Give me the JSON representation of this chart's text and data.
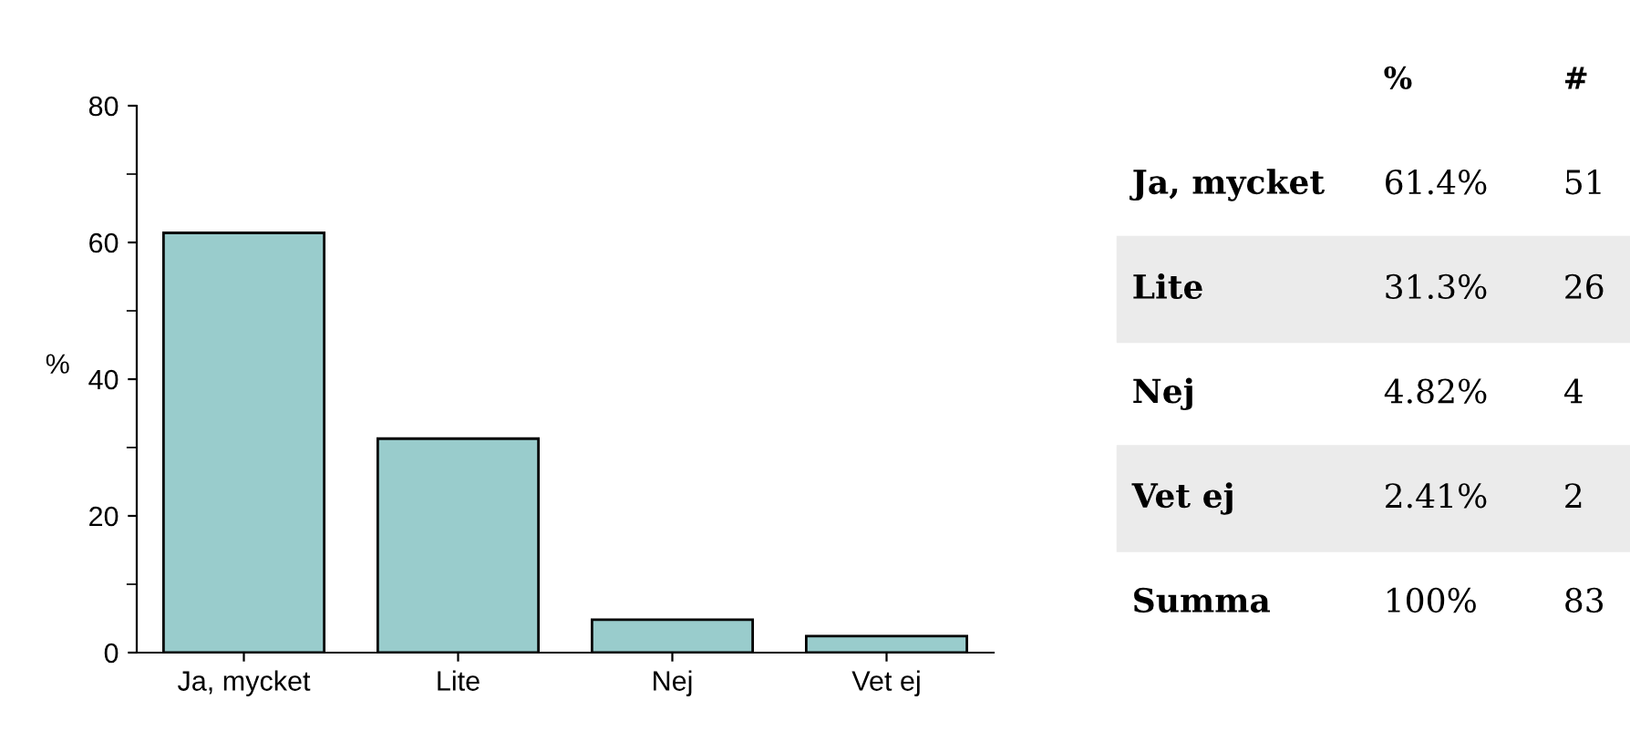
{
  "chart_data": [
    {
      "type": "bar",
      "categories": [
        "Ja, mycket",
        "Lite",
        "Nej",
        "Vet ej"
      ],
      "values": [
        61.4,
        31.3,
        4.82,
        2.41
      ],
      "color": "#99cccc",
      "ylabel": "%",
      "ylim": [
        0,
        80
      ],
      "yticks": [
        0,
        20,
        40,
        60,
        80
      ],
      "grid": false,
      "legend": false
    },
    {
      "type": "other",
      "annotations": [
        "%",
        "#",
        "Ja, mycket",
        "61.4%",
        "51",
        "Lite",
        "31.3%",
        "26",
        "Nej",
        "4.82%",
        "4",
        "Vet ej",
        "2.41%",
        "2",
        "Summa",
        "100%",
        "83"
      ]
    }
  ]
}
